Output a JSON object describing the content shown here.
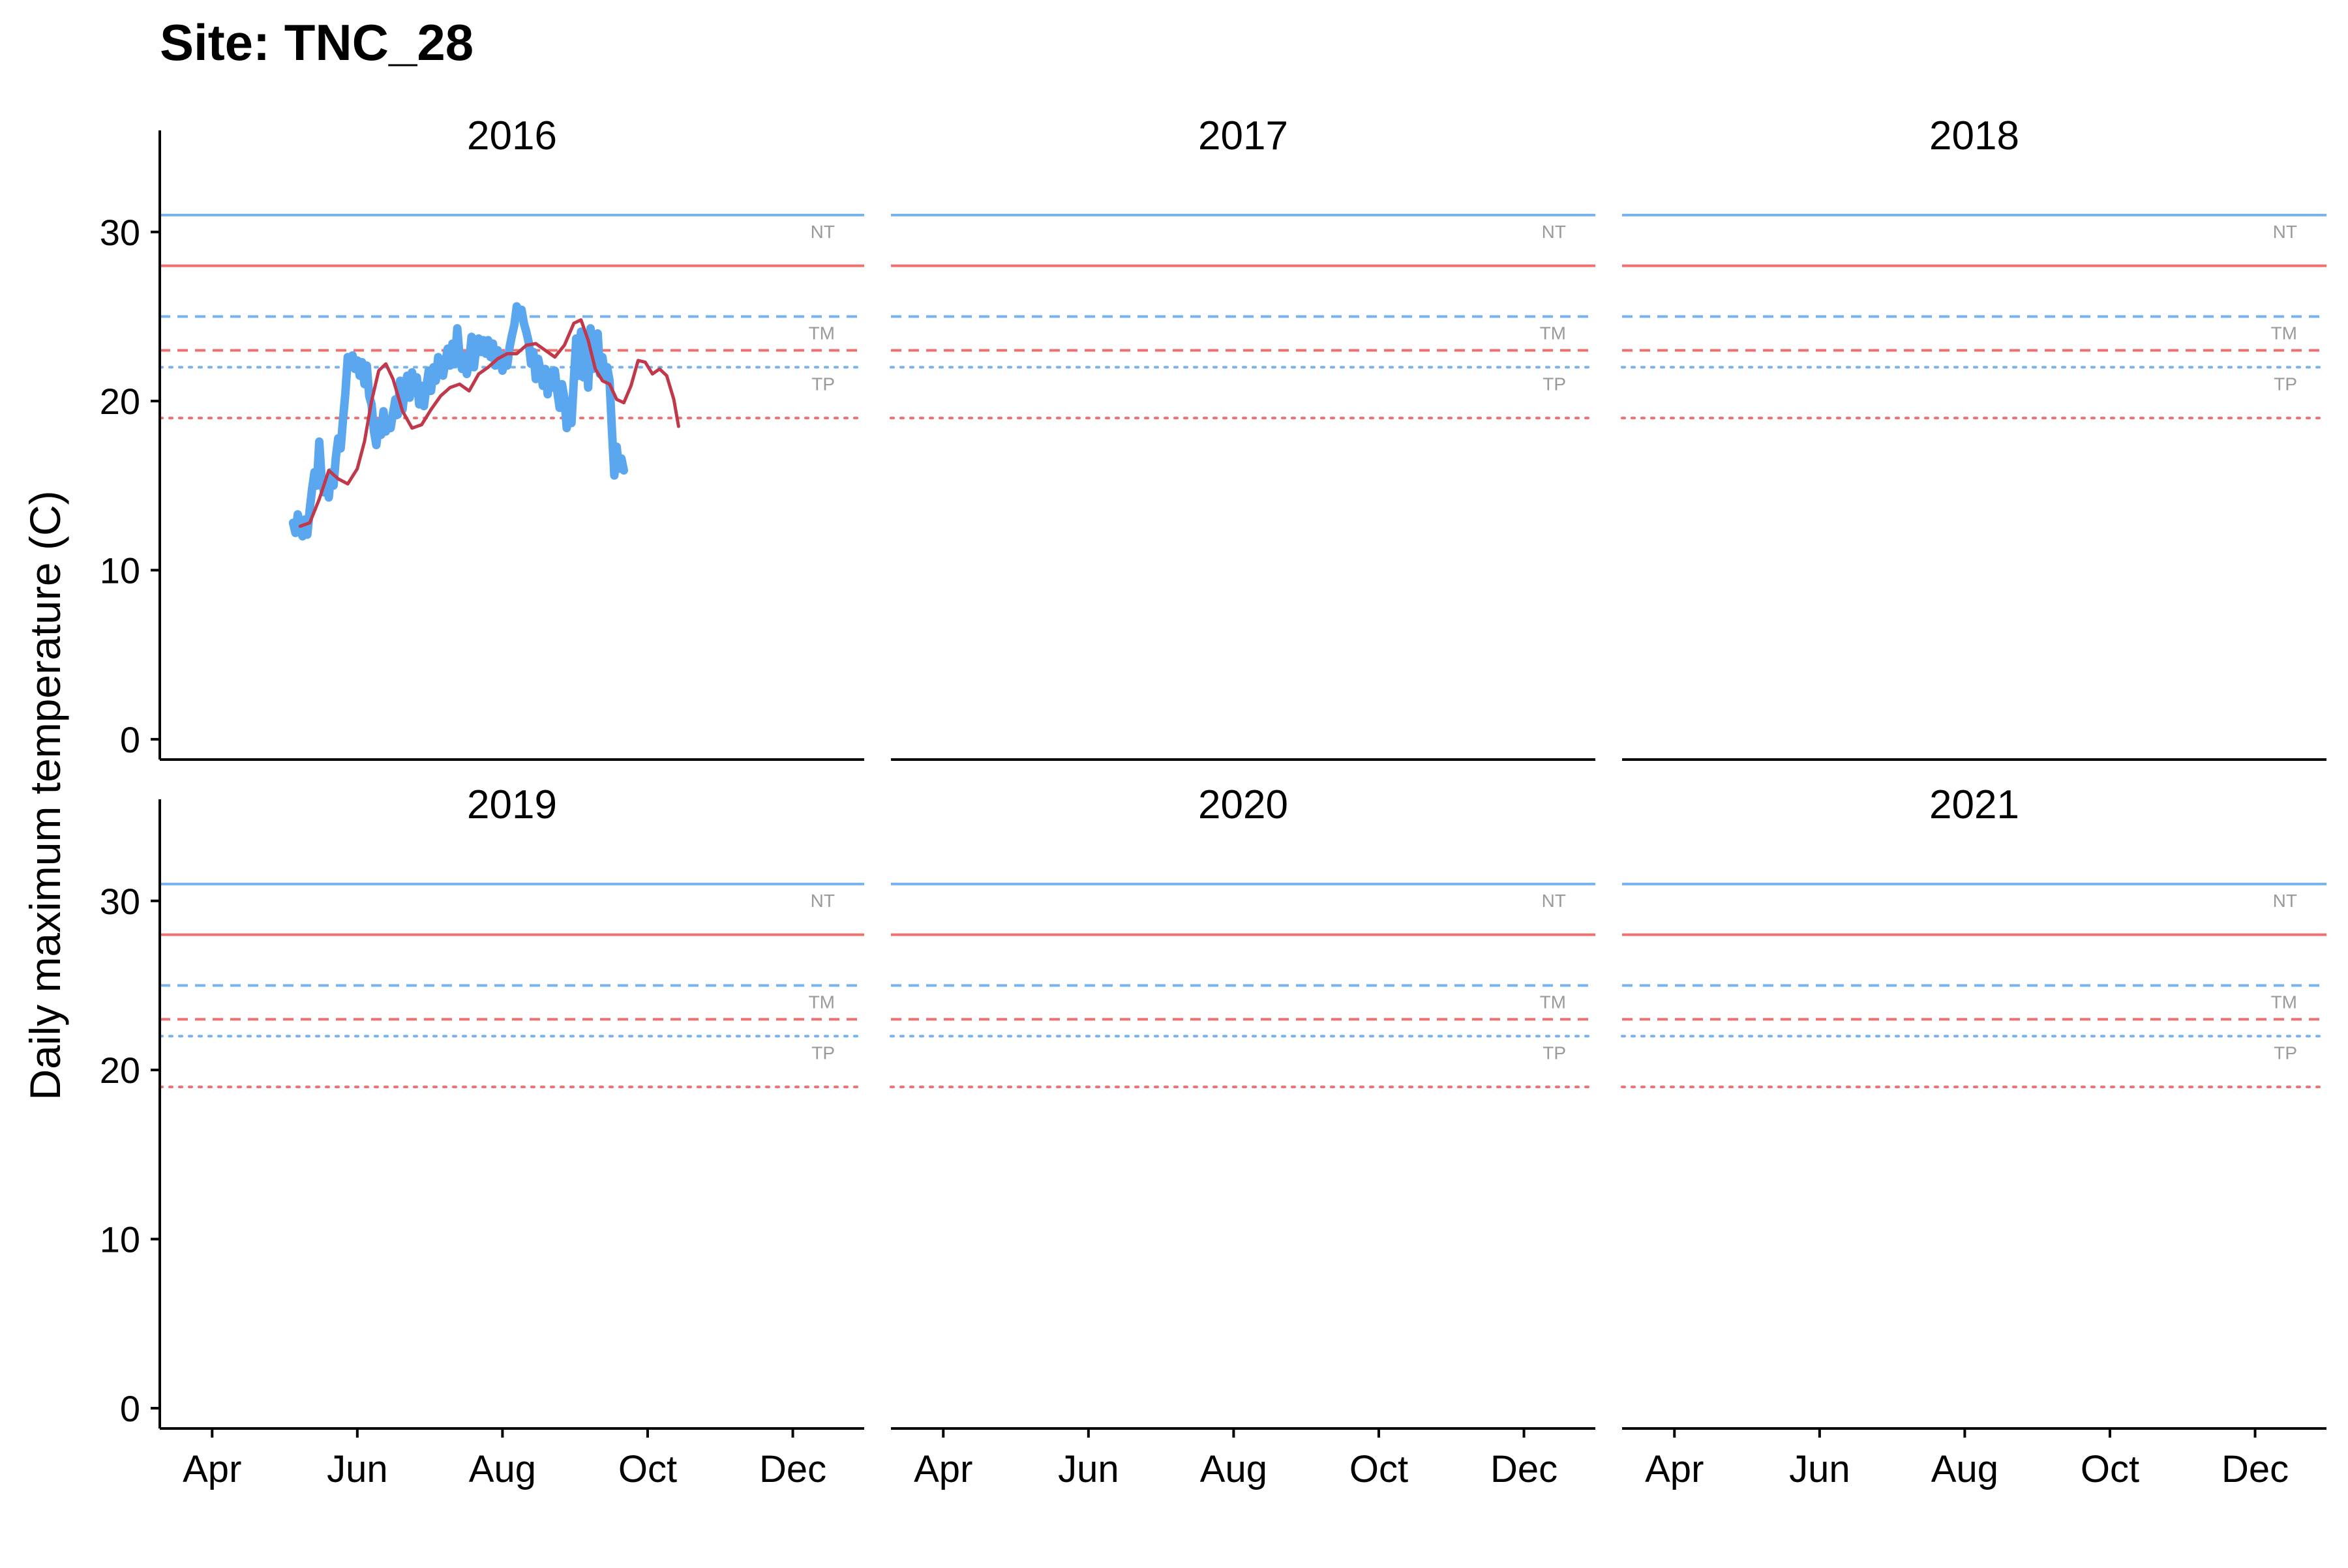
{
  "chart_data": {
    "type": "line",
    "title": "Site: TNC_28",
    "ylabel": "Daily maximum temperature (C)",
    "xlabel": "",
    "ylim": [
      -1.2,
      33.5
    ],
    "yticks": [
      0,
      10,
      20,
      30
    ],
    "xlim": [
      "2016-03-10",
      "2016-12-31"
    ],
    "xticks": [
      {
        "label": "Apr",
        "date": "2016-04-01"
      },
      {
        "label": "Jun",
        "date": "2016-06-01"
      },
      {
        "label": "Aug",
        "date": "2016-08-01"
      },
      {
        "label": "Oct",
        "date": "2016-10-01"
      },
      {
        "label": "Dec",
        "date": "2016-12-01"
      }
    ],
    "grid": false,
    "legend": "none",
    "facet_layout": {
      "rows": 2,
      "cols": 3
    },
    "facets": [
      "2016",
      "2017",
      "2018",
      "2019",
      "2020",
      "2021"
    ],
    "thresholds": [
      {
        "label": "NT",
        "value": 31,
        "color": "#77b3ee",
        "linestyle": "solid"
      },
      {
        "label": "",
        "value": 28,
        "color": "#f07070",
        "linestyle": "solid"
      },
      {
        "label": "TM",
        "value": 25,
        "color": "#77b3ee",
        "linestyle": "dashed"
      },
      {
        "label": "",
        "value": 23,
        "color": "#f07070",
        "linestyle": "dashed"
      },
      {
        "label": "TP",
        "value": 22,
        "color": "#77b3ee",
        "linestyle": "dotted"
      },
      {
        "label": "",
        "value": 19,
        "color": "#f07070",
        "linestyle": "dotted"
      }
    ],
    "threshold_label_color": "#9a9a9a",
    "series": [
      {
        "facet": "2016",
        "color": "#5aa7ef",
        "points": [
          [
            "2016-05-05",
            12.8
          ],
          [
            "2016-05-06",
            12.2
          ],
          [
            "2016-05-07",
            13.3
          ],
          [
            "2016-05-08",
            12.5
          ],
          [
            "2016-05-09",
            12.0
          ],
          [
            "2016-05-10",
            13.0
          ],
          [
            "2016-05-11",
            12.1
          ],
          [
            "2016-05-12",
            13.6
          ],
          [
            "2016-05-13",
            14.8
          ],
          [
            "2016-05-14",
            15.8
          ],
          [
            "2016-05-15",
            15.0
          ],
          [
            "2016-05-16",
            17.6
          ],
          [
            "2016-05-17",
            15.4
          ],
          [
            "2016-05-18",
            14.6
          ],
          [
            "2016-05-19",
            15.2
          ],
          [
            "2016-05-20",
            14.3
          ],
          [
            "2016-05-21",
            15.8
          ],
          [
            "2016-05-22",
            15.0
          ],
          [
            "2016-05-23",
            16.7
          ],
          [
            "2016-05-24",
            17.8
          ],
          [
            "2016-05-25",
            17.2
          ],
          [
            "2016-05-26",
            18.9
          ],
          [
            "2016-05-27",
            20.5
          ],
          [
            "2016-05-28",
            22.6
          ],
          [
            "2016-05-29",
            22.1
          ],
          [
            "2016-05-30",
            22.7
          ],
          [
            "2016-05-31",
            21.9
          ],
          [
            "2016-06-01",
            22.4
          ],
          [
            "2016-06-02",
            21.5
          ],
          [
            "2016-06-03",
            22.3
          ],
          [
            "2016-06-04",
            21.0
          ],
          [
            "2016-06-05",
            22.1
          ],
          [
            "2016-06-06",
            20.3
          ],
          [
            "2016-06-07",
            19.8
          ],
          [
            "2016-06-08",
            18.2
          ],
          [
            "2016-06-09",
            17.4
          ],
          [
            "2016-06-10",
            18.7
          ],
          [
            "2016-06-11",
            18.0
          ],
          [
            "2016-06-12",
            19.4
          ],
          [
            "2016-06-13",
            18.2
          ],
          [
            "2016-06-14",
            18.9
          ],
          [
            "2016-06-15",
            18.4
          ],
          [
            "2016-06-16",
            19.3
          ],
          [
            "2016-06-17",
            20.1
          ],
          [
            "2016-06-18",
            19.2
          ],
          [
            "2016-06-19",
            21.2
          ],
          [
            "2016-06-20",
            19.5
          ],
          [
            "2016-06-21",
            20.8
          ],
          [
            "2016-06-22",
            21.5
          ],
          [
            "2016-06-23",
            20.2
          ],
          [
            "2016-06-24",
            21.7
          ],
          [
            "2016-06-25",
            20.5
          ],
          [
            "2016-06-26",
            21.4
          ],
          [
            "2016-06-27",
            19.8
          ],
          [
            "2016-06-28",
            20.9
          ],
          [
            "2016-06-29",
            19.7
          ],
          [
            "2016-06-30",
            20.8
          ],
          [
            "2016-07-01",
            21.8
          ],
          [
            "2016-07-02",
            20.6
          ],
          [
            "2016-07-03",
            22.0
          ],
          [
            "2016-07-04",
            21.2
          ],
          [
            "2016-07-05",
            22.6
          ],
          [
            "2016-07-06",
            21.8
          ],
          [
            "2016-07-07",
            21.5
          ],
          [
            "2016-07-08",
            22.3
          ],
          [
            "2016-07-09",
            23.1
          ],
          [
            "2016-07-10",
            22.1
          ],
          [
            "2016-07-11",
            23.4
          ],
          [
            "2016-07-12",
            22.2
          ],
          [
            "2016-07-13",
            24.3
          ],
          [
            "2016-07-14",
            22.6
          ],
          [
            "2016-07-15",
            21.9
          ],
          [
            "2016-07-16",
            22.7
          ],
          [
            "2016-07-17",
            21.6
          ],
          [
            "2016-07-18",
            22.3
          ],
          [
            "2016-07-19",
            23.8
          ],
          [
            "2016-07-20",
            22.0
          ],
          [
            "2016-07-21",
            23.2
          ],
          [
            "2016-07-22",
            23.7
          ],
          [
            "2016-07-23",
            22.9
          ],
          [
            "2016-07-24",
            23.6
          ],
          [
            "2016-07-25",
            22.8
          ],
          [
            "2016-07-26",
            23.6
          ],
          [
            "2016-07-27",
            22.6
          ],
          [
            "2016-07-28",
            23.4
          ],
          [
            "2016-07-29",
            22.1
          ],
          [
            "2016-07-30",
            23.0
          ],
          [
            "2016-07-31",
            22.4
          ],
          [
            "2016-08-01",
            21.8
          ],
          [
            "2016-08-02",
            22.7
          ],
          [
            "2016-08-03",
            22.1
          ],
          [
            "2016-08-04",
            23.2
          ],
          [
            "2016-08-05",
            23.9
          ],
          [
            "2016-08-06",
            24.5
          ],
          [
            "2016-08-07",
            25.6
          ],
          [
            "2016-08-08",
            25.0
          ],
          [
            "2016-08-09",
            25.4
          ],
          [
            "2016-08-10",
            24.6
          ],
          [
            "2016-08-11",
            24.1
          ],
          [
            "2016-08-12",
            23.5
          ],
          [
            "2016-08-13",
            22.2
          ],
          [
            "2016-08-14",
            22.9
          ],
          [
            "2016-08-15",
            21.3
          ],
          [
            "2016-08-16",
            22.5
          ],
          [
            "2016-08-17",
            21.8
          ],
          [
            "2016-08-18",
            20.9
          ],
          [
            "2016-08-19",
            21.9
          ],
          [
            "2016-08-20",
            20.4
          ],
          [
            "2016-08-21",
            21.7
          ],
          [
            "2016-08-22",
            20.8
          ],
          [
            "2016-08-23",
            21.8
          ],
          [
            "2016-08-24",
            20.6
          ],
          [
            "2016-08-25",
            19.6
          ],
          [
            "2016-08-26",
            21.0
          ],
          [
            "2016-08-27",
            20.2
          ],
          [
            "2016-08-28",
            18.4
          ],
          [
            "2016-08-29",
            19.9
          ],
          [
            "2016-08-30",
            18.7
          ],
          [
            "2016-08-31",
            21.3
          ],
          [
            "2016-09-01",
            23.7
          ],
          [
            "2016-09-02",
            21.5
          ],
          [
            "2016-09-03",
            24.1
          ],
          [
            "2016-09-04",
            21.4
          ],
          [
            "2016-09-05",
            23.6
          ],
          [
            "2016-09-06",
            20.8
          ],
          [
            "2016-09-07",
            24.3
          ],
          [
            "2016-09-08",
            21.9
          ],
          [
            "2016-09-09",
            22.8
          ],
          [
            "2016-09-10",
            24.0
          ],
          [
            "2016-09-11",
            21.6
          ],
          [
            "2016-09-12",
            22.6
          ],
          [
            "2016-09-13",
            21.5
          ],
          [
            "2016-09-14",
            22.0
          ],
          [
            "2016-09-15",
            21.2
          ],
          [
            "2016-09-16",
            18.3
          ],
          [
            "2016-09-17",
            15.6
          ],
          [
            "2016-09-18",
            17.3
          ],
          [
            "2016-09-19",
            16.0
          ],
          [
            "2016-09-20",
            16.6
          ],
          [
            "2016-09-21",
            15.9
          ]
        ]
      },
      {
        "facet": "2016",
        "color": "#c0384a",
        "points": [
          [
            "2016-05-08",
            12.6
          ],
          [
            "2016-05-12",
            12.8
          ],
          [
            "2016-05-16",
            14.2
          ],
          [
            "2016-05-20",
            15.9
          ],
          [
            "2016-05-24",
            15.4
          ],
          [
            "2016-05-28",
            15.1
          ],
          [
            "2016-06-01",
            16.0
          ],
          [
            "2016-06-04",
            17.6
          ],
          [
            "2016-06-07",
            20.0
          ],
          [
            "2016-06-10",
            21.8
          ],
          [
            "2016-06-13",
            22.2
          ],
          [
            "2016-06-16",
            21.3
          ],
          [
            "2016-06-20",
            19.4
          ],
          [
            "2016-06-24",
            18.4
          ],
          [
            "2016-06-28",
            18.6
          ],
          [
            "2016-07-02",
            19.5
          ],
          [
            "2016-07-06",
            20.3
          ],
          [
            "2016-07-10",
            20.8
          ],
          [
            "2016-07-14",
            21.0
          ],
          [
            "2016-07-18",
            20.6
          ],
          [
            "2016-07-22",
            21.6
          ],
          [
            "2016-07-26",
            22.0
          ],
          [
            "2016-07-30",
            22.5
          ],
          [
            "2016-08-03",
            22.8
          ],
          [
            "2016-08-07",
            22.8
          ],
          [
            "2016-08-11",
            23.3
          ],
          [
            "2016-08-15",
            23.4
          ],
          [
            "2016-08-19",
            23.0
          ],
          [
            "2016-08-23",
            22.6
          ],
          [
            "2016-08-27",
            23.3
          ],
          [
            "2016-08-31",
            24.6
          ],
          [
            "2016-09-03",
            24.8
          ],
          [
            "2016-09-06",
            23.6
          ],
          [
            "2016-09-09",
            21.9
          ],
          [
            "2016-09-12",
            21.2
          ],
          [
            "2016-09-15",
            21.0
          ],
          [
            "2016-09-18",
            20.1
          ],
          [
            "2016-09-21",
            19.9
          ],
          [
            "2016-09-24",
            20.9
          ],
          [
            "2016-09-27",
            22.4
          ],
          [
            "2016-09-30",
            22.3
          ],
          [
            "2016-10-03",
            21.6
          ],
          [
            "2016-10-06",
            21.9
          ],
          [
            "2016-10-09",
            21.5
          ],
          [
            "2016-10-12",
            20.1
          ],
          [
            "2016-10-14",
            18.5
          ]
        ]
      }
    ]
  }
}
